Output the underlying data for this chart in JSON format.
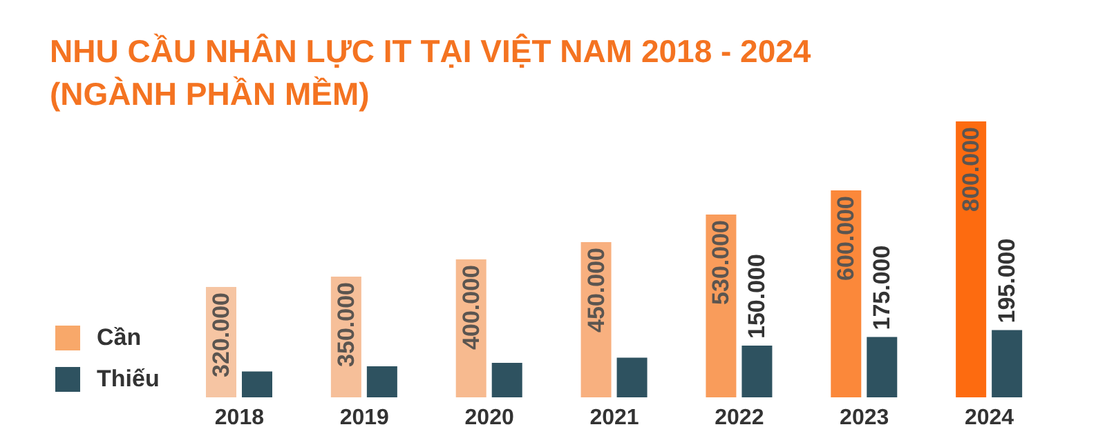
{
  "chart_data": {
    "type": "bar",
    "title": "NHU CẦU NHÂN LỰC IT TẠI VIỆT NAM 2018 - 2024\n(NGÀNH PHẦN MỀM)",
    "categories": [
      "2018",
      "2019",
      "2020",
      "2021",
      "2022",
      "2023",
      "2024"
    ],
    "series": [
      {
        "name": "Cần",
        "color": "#f8a86a",
        "colors": [
          "#f6c5a3",
          "#f6bf99",
          "#f7ba8f",
          "#f8b07f",
          "#f99c5b",
          "#fb883a",
          "#fd6b10"
        ],
        "values": [
          320000,
          350000,
          400000,
          450000,
          530000,
          600000,
          800000
        ],
        "value_labels": [
          "320.000",
          "350.000",
          "400.000",
          "450.000",
          "530.000",
          "600.000",
          "800.000"
        ]
      },
      {
        "name": "Thiếu",
        "color": "#2e5260",
        "values": [
          75000,
          90000,
          100000,
          115000,
          150000,
          175000,
          195000
        ],
        "value_labels": [
          null,
          null,
          null,
          null,
          "150.000",
          "175.000",
          "195.000"
        ]
      }
    ],
    "legend": "left"
  }
}
